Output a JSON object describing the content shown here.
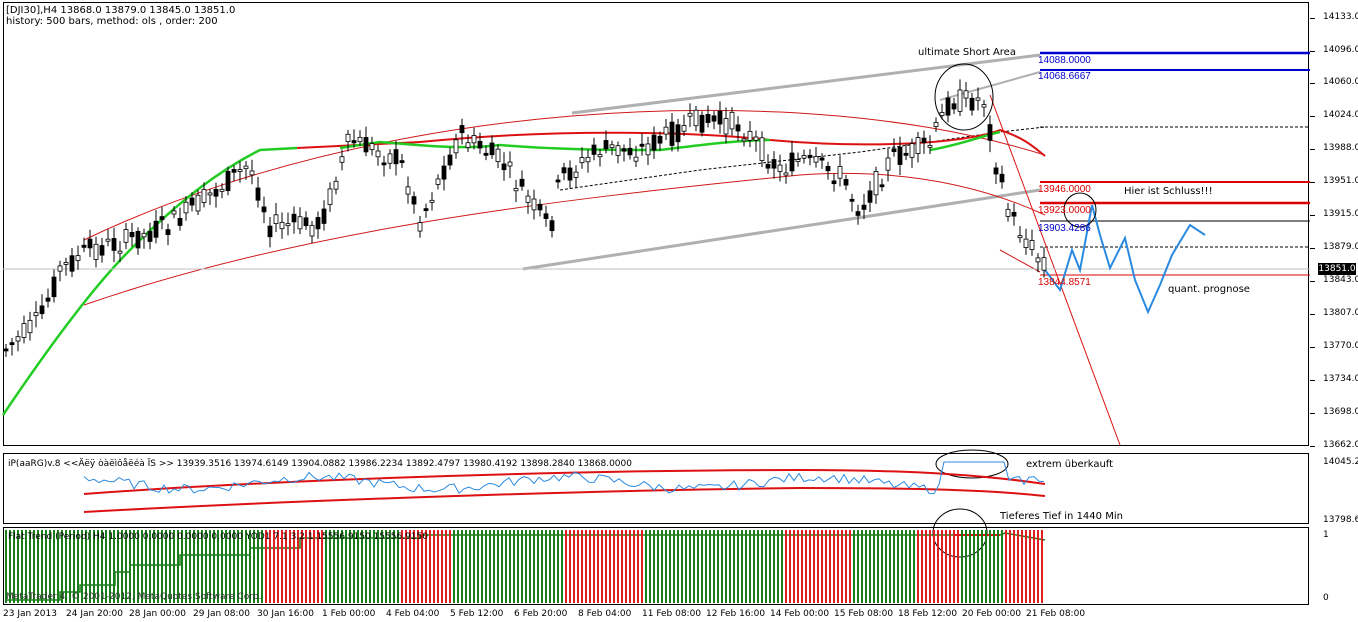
{
  "main": {
    "symbol_line": "[DJI30],H4  13868.0 13879.0 13845.0 13851.0",
    "history_line": "history: 500 bars, method: ols , order: 200",
    "price_axis": [
      "14133.0",
      "14096.0",
      "14060.0",
      "14024.0",
      "13988.0",
      "13951.0",
      "13915.0",
      "13879.0",
      "13843.0",
      "13807.0",
      "13770.0",
      "13734.0",
      "13698.0",
      "13662.0"
    ],
    "current_price": "13851.0",
    "annotations": {
      "short_area": "ultimate Short Area",
      "schluss": "Hier ist Schluss!!!",
      "prognose": "quant. prognose"
    },
    "levels": {
      "l1": "14088.0000",
      "l2": "14068.6667",
      "l3": "13946.0000",
      "l4": "13923.0000",
      "l5": "13903.4286",
      "l6": "13844.8571"
    }
  },
  "ind1": {
    "label": "iP(aaRG)v.8 <<Äëÿ òàëìôåëéà ÏS >> 13939.3516 13974.6149 13904.0882 13986.2234 13892.4797 13980.4192 13898.2840 13868.0000",
    "axis": [
      "14045.2",
      "13798.6"
    ],
    "note": "extrem überkauft"
  },
  "ind2": {
    "label": "Flat Trend (Period) H4  1.0000 0.0000 0.0000 0.0000  YOD1  7.1 3.2  1  15556.9150  15556.9150",
    "axis": [
      "1",
      "0"
    ],
    "note": "Tieferes Tief in  1440 Min"
  },
  "time_axis": [
    "23 Jan 2013",
    "24 Jan 20:00",
    "28 Jan 00:00",
    "29 Jan 08:00",
    "30 Jan 16:00",
    "1 Feb 00:00",
    "4 Feb 04:00",
    "5 Feb 12:00",
    "6 Feb 20:00",
    "8 Feb 04:00",
    "11 Feb 08:00",
    "12 Feb 16:00",
    "14 Feb 00:00",
    "15 Feb 08:00",
    "18 Feb 12:00",
    "20 Feb 00:00",
    "21 Feb 08:00"
  ],
  "copyright": "MetaTrader 4, © 2001-2012, MetaQuotes Software Corp.",
  "colors": {
    "bull_hist": "#1a7f1a",
    "bear_hist": "#e02020",
    "ma_green": "#22cc22",
    "ma_red": "#dd1111",
    "level_blue": "#0000cc",
    "level_red": "#dd0000",
    "prognose": "#2a8ae0"
  }
}
